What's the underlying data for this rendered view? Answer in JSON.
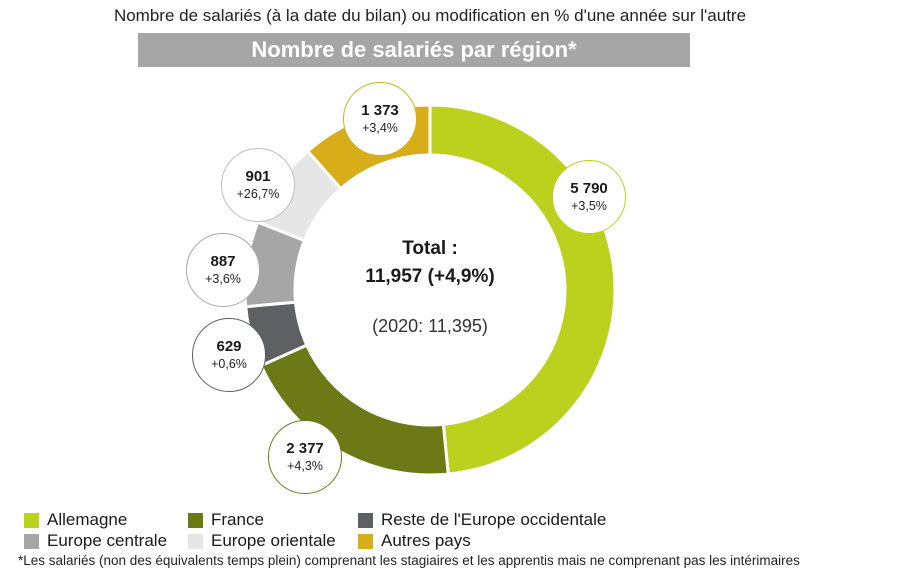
{
  "header": {
    "subtitle": "Nombre de salariés (à la date du bilan) ou modification en % d'une année sur l'autre",
    "banner_title": "Nombre de salariés par région*"
  },
  "center": {
    "total_label": "Total :",
    "total_value": "11,957 (+4,9%)",
    "previous": "(2020: 11,395)"
  },
  "chart_data": {
    "type": "pie",
    "title": "Nombre de salariés par région*",
    "total": 11957,
    "segments": [
      {
        "name": "Allemagne",
        "value": 5790,
        "value_label": "5 790",
        "change": "+3,5%",
        "color": "#bcd11e"
      },
      {
        "name": "France",
        "value": 2377,
        "value_label": "2 377",
        "change": "+4,3%",
        "color": "#6b7a16"
      },
      {
        "name": "Reste de l'Europe occidentale",
        "value": 629,
        "value_label": "629",
        "change": "+0,6%",
        "color": "#5f6062"
      },
      {
        "name": "Europe centrale",
        "value": 887,
        "value_label": "887",
        "change": "+3,6%",
        "color": "#a6a6a6"
      },
      {
        "name": "Europe orientale",
        "value": 901,
        "value_label": "901",
        "change": "+26,7%",
        "color": "#e6e6e6"
      },
      {
        "name": "Autres pays",
        "value": 1373,
        "value_label": "1 373",
        "change": "+3,4%",
        "color": "#d8ad1a"
      }
    ]
  },
  "legend": [
    {
      "label": "Allemagne",
      "color": "#bcd11e"
    },
    {
      "label": "France",
      "color": "#6b7a16"
    },
    {
      "label": "Reste de l'Europe occidentale",
      "color": "#5f6062"
    },
    {
      "label": "Europe centrale",
      "color": "#a6a6a6"
    },
    {
      "label": "Europe orientale",
      "color": "#e6e6e6"
    },
    {
      "label": "Autres pays",
      "color": "#d8ad1a"
    }
  ],
  "footnote": "*Les salariés (non des équivalents temps plein) comprenant les stagiaires et les apprentis mais ne comprenant pas les intérimaires"
}
